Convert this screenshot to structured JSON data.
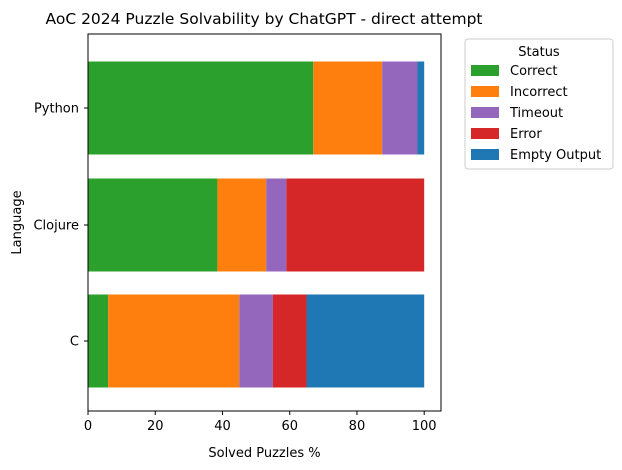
{
  "chart_data": {
    "type": "bar",
    "orientation": "horizontal",
    "stacked": true,
    "title": "AoC 2024 Puzzle Solvability by ChatGPT - direct attempt",
    "xlabel": "Solved Puzzles %",
    "ylabel": "Language",
    "xlim": [
      0,
      105
    ],
    "xticks": [
      0,
      20,
      40,
      60,
      80,
      100
    ],
    "categories": [
      "Python",
      "Clojure",
      "C"
    ],
    "series": [
      {
        "name": "Correct",
        "color": "#2ca02c",
        "values": [
          67,
          38.5,
          6
        ]
      },
      {
        "name": "Incorrect",
        "color": "#ff7f0e",
        "values": [
          20.5,
          14.5,
          39
        ]
      },
      {
        "name": "Timeout",
        "color": "#9467bd",
        "values": [
          10.5,
          6,
          10
        ]
      },
      {
        "name": "Error",
        "color": "#d62728",
        "values": [
          0,
          41,
          10
        ]
      },
      {
        "name": "Empty Output",
        "color": "#1f77b4",
        "values": [
          2,
          0,
          35
        ]
      }
    ],
    "legend": {
      "title": "Status",
      "placement": "outside-top-right"
    },
    "grid": false
  }
}
